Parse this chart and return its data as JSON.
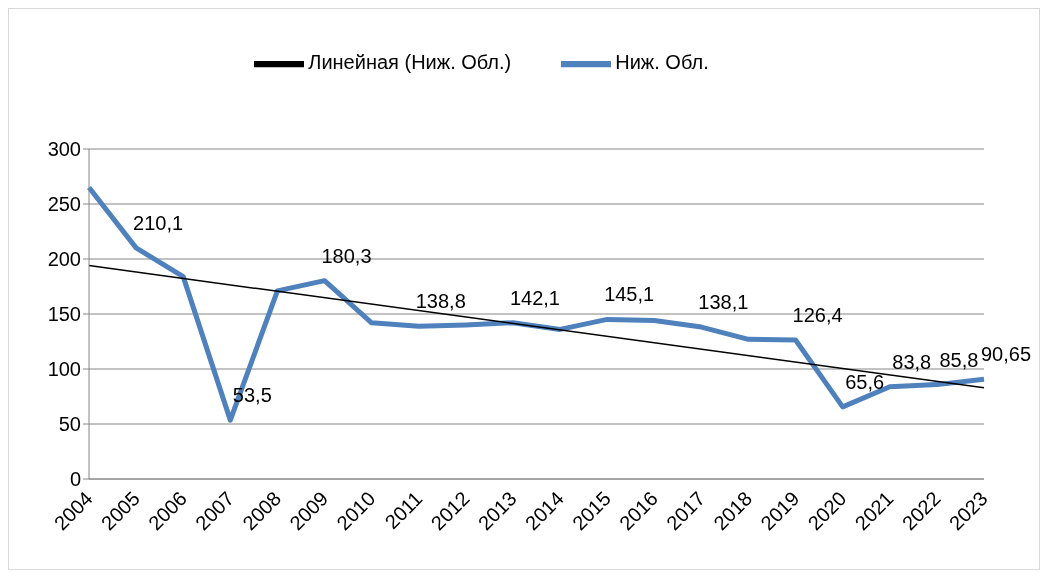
{
  "chart_data": {
    "type": "line",
    "categories": [
      "2004",
      "2005",
      "2006",
      "2007",
      "2008",
      "2009",
      "2010",
      "2011",
      "2012",
      "2013",
      "2014",
      "2015",
      "2016",
      "2017",
      "2018",
      "2019",
      "2020",
      "2021",
      "2022",
      "2023"
    ],
    "series": [
      {
        "name": "Ниж. Обл.",
        "color": "#4f81bd",
        "values": [
          265,
          210.1,
          184,
          53.5,
          171,
          180.3,
          142,
          138.8,
          140,
          142.1,
          136,
          145.1,
          144,
          138.1,
          127,
          126.4,
          65.6,
          83.8,
          85.8,
          90.65
        ],
        "value_labels": [
          null,
          "210,1",
          null,
          "53,5",
          null,
          "180,3",
          null,
          "138,8",
          null,
          "142,1",
          null,
          "145,1",
          null,
          "138,1",
          null,
          "126,4",
          "65,6",
          "83,8",
          "85,8",
          "90,65"
        ]
      },
      {
        "name": "Линейная (Ниж. Обл.)",
        "color": "#000000",
        "values": [
          194,
          null,
          null,
          null,
          null,
          null,
          null,
          null,
          null,
          null,
          null,
          null,
          null,
          null,
          null,
          null,
          null,
          null,
          null,
          83
        ]
      }
    ],
    "ylim": [
      0,
      300
    ],
    "yticks": [
      0,
      50,
      100,
      150,
      200,
      250,
      300
    ],
    "grid": "y",
    "legend": "top",
    "marker": "none"
  }
}
